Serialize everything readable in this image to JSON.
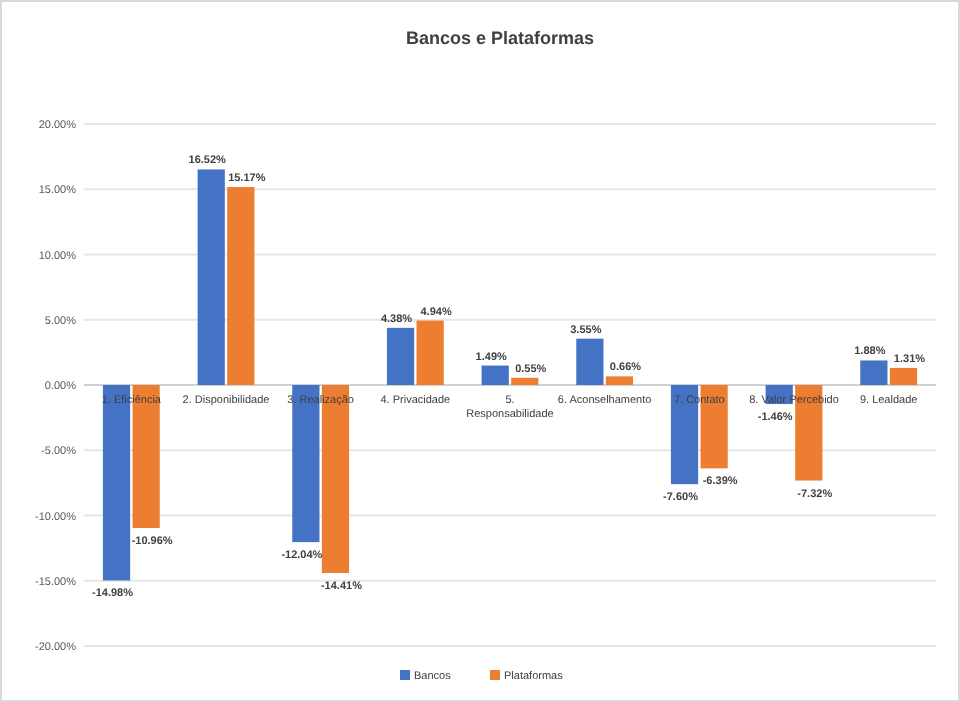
{
  "chart_data": {
    "type": "bar",
    "title": "Bancos e Plataformas",
    "categories": [
      "1. Eficiência",
      "2. Disponibilidade",
      "3. Realização",
      "4. Privacidade",
      "5. Responsabilidade",
      "6. Aconselhamento",
      "7. Contato",
      "8. Valor Percebido",
      "9. Lealdade"
    ],
    "series": [
      {
        "name": "Bancos",
        "color": "#4472c4",
        "values": [
          -14.98,
          16.52,
          -12.04,
          4.38,
          1.49,
          3.55,
          -7.6,
          -1.46,
          1.88
        ],
        "value_labels": [
          "-14.98%",
          "16.52%",
          "-12.04%",
          "4.38%",
          "1.49%",
          "3.55%",
          "-7.60%",
          "-1.46%",
          "1.88%"
        ]
      },
      {
        "name": "Plataformas",
        "color": "#ed7d31",
        "values": [
          -10.96,
          15.17,
          -14.41,
          4.94,
          0.55,
          0.66,
          -6.39,
          -7.32,
          1.31
        ],
        "value_labels": [
          "-10.96%",
          "15.17%",
          "-14.41%",
          "4.94%",
          "0.55%",
          "0.66%",
          "-6.39%",
          "-7.32%",
          "1.31%"
        ]
      }
    ],
    "ylim": [
      -20,
      20
    ],
    "yticks": [
      {
        "value": -20,
        "label": "-20.00%"
      },
      {
        "value": -15,
        "label": "-15.00%"
      },
      {
        "value": -10,
        "label": "-10.00%"
      },
      {
        "value": -5,
        "label": "-5.00%"
      },
      {
        "value": 0,
        "label": "0.00%"
      },
      {
        "value": 5,
        "label": "5.00%"
      },
      {
        "value": 10,
        "label": "10.00%"
      },
      {
        "value": 15,
        "label": "15.00%"
      },
      {
        "value": 20,
        "label": "20.00%"
      }
    ],
    "grid": true,
    "legend": "bottom"
  }
}
